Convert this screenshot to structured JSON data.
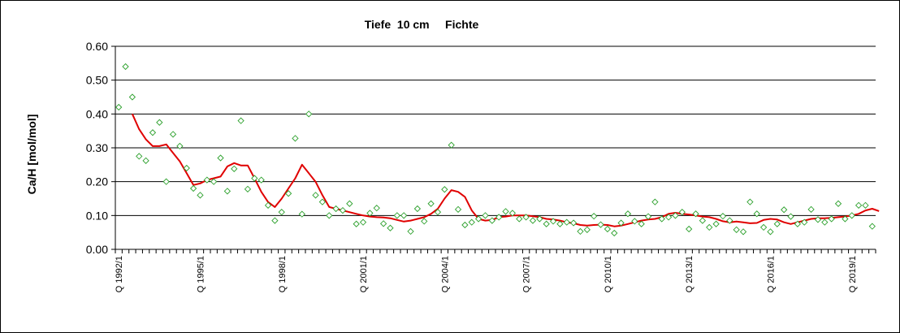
{
  "chart_data": {
    "type": "scatter",
    "title": "Tiefe  10 cm     Fichte",
    "ylabel": "Ca/H [mol/mol]",
    "xlabel": "",
    "ylim": [
      0,
      0.6
    ],
    "yticks": [
      "0.00",
      "0.10",
      "0.20",
      "0.30",
      "0.40",
      "0.50",
      "0.60"
    ],
    "xtick_labels": [
      "Q 1992/1",
      "Q 1995/1",
      "Q 1998/1",
      "Q 2001/1",
      "Q 2004/1",
      "Q 2007/1",
      "Q 2010/1",
      "Q 2013/1",
      "Q 2016/1",
      "Q 2019/1"
    ],
    "x_unit": "quarter",
    "x_start": "Q 1992/1",
    "grid": "horizontal",
    "legend": "none",
    "colors": {
      "points": "#2ca02c",
      "line": "#e00000",
      "grid": "#000000"
    },
    "series": [
      {
        "type": "scatter",
        "values": [
          0.42,
          0.54,
          0.45,
          0.275,
          0.262,
          0.345,
          0.375,
          0.2,
          0.34,
          0.305,
          0.24,
          0.18,
          0.16,
          0.205,
          0.2,
          0.27,
          0.172,
          0.238,
          0.38,
          0.178,
          0.21,
          0.205,
          0.13,
          0.085,
          0.11,
          0.165,
          0.328,
          0.104,
          0.4,
          0.16,
          0.14,
          0.1,
          0.12,
          0.115,
          0.135,
          0.075,
          0.08,
          0.107,
          0.122,
          0.076,
          0.063,
          0.1,
          0.1,
          0.053,
          0.12,
          0.083,
          0.135,
          0.11,
          0.177,
          0.308,
          0.118,
          0.072,
          0.08,
          0.09,
          0.1,
          0.085,
          0.095,
          0.112,
          0.107,
          0.09,
          0.095,
          0.085,
          0.09,
          0.075,
          0.083,
          0.075,
          0.08,
          0.078,
          0.053,
          0.058,
          0.098,
          0.073,
          0.06,
          0.048,
          0.078,
          0.105,
          0.083,
          0.075,
          0.097,
          0.14,
          0.09,
          0.095,
          0.1,
          0.11,
          0.06,
          0.105,
          0.085,
          0.065,
          0.075,
          0.098,
          0.085,
          0.058,
          0.052,
          0.14,
          0.105,
          0.065,
          0.052,
          0.075,
          0.117,
          0.097,
          0.075,
          0.08,
          0.118,
          0.088,
          0.08,
          0.09,
          0.135,
          0.09,
          0.1,
          0.13,
          0.13,
          0.068
        ]
      },
      {
        "type": "line",
        "start_index": 2,
        "values": [
          0.4,
          0.355,
          0.325,
          0.305,
          0.305,
          0.31,
          0.285,
          0.26,
          0.225,
          0.19,
          0.195,
          0.205,
          0.21,
          0.215,
          0.245,
          0.255,
          0.248,
          0.248,
          0.21,
          0.17,
          0.14,
          0.125,
          0.15,
          0.18,
          0.21,
          0.25,
          0.225,
          0.2,
          0.16,
          0.125,
          0.12,
          0.115,
          0.11,
          0.105,
          0.1,
          0.097,
          0.095,
          0.094,
          0.092,
          0.087,
          0.082,
          0.085,
          0.09,
          0.095,
          0.105,
          0.12,
          0.15,
          0.175,
          0.17,
          0.155,
          0.115,
          0.09,
          0.085,
          0.087,
          0.095,
          0.097,
          0.1,
          0.1,
          0.1,
          0.098,
          0.095,
          0.09,
          0.088,
          0.085,
          0.08,
          0.077,
          0.072,
          0.07,
          0.072,
          0.073,
          0.072,
          0.068,
          0.07,
          0.075,
          0.08,
          0.085,
          0.088,
          0.09,
          0.095,
          0.105,
          0.108,
          0.105,
          0.103,
          0.1,
          0.097,
          0.095,
          0.09,
          0.083,
          0.08,
          0.082,
          0.08,
          0.077,
          0.078,
          0.087,
          0.09,
          0.088,
          0.08,
          0.075,
          0.08,
          0.085,
          0.09,
          0.092,
          0.092,
          0.093,
          0.095,
          0.097,
          0.1,
          0.105,
          0.115,
          0.12,
          0.113
        ]
      }
    ]
  }
}
